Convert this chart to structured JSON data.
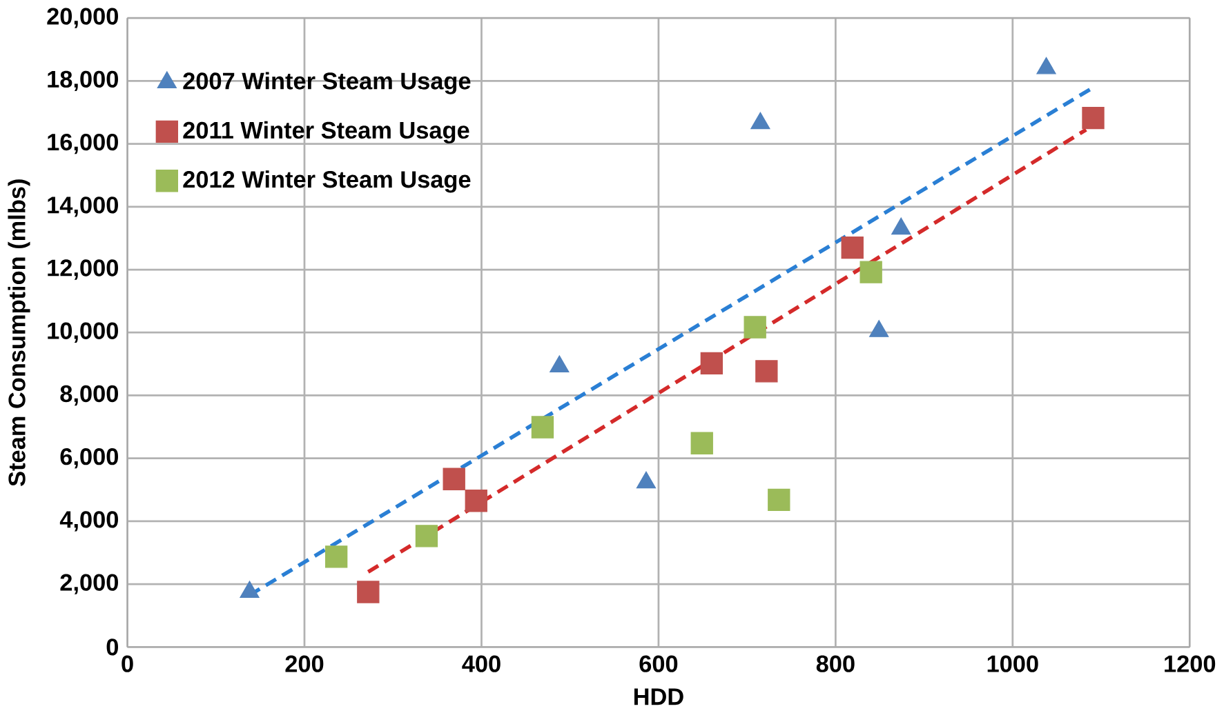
{
  "chart_data": {
    "type": "scatter",
    "xlabel": "HDD",
    "ylabel": "Steam Consumption (mlbs)",
    "xlim": [
      0,
      1200
    ],
    "xticks": [
      0,
      200,
      400,
      600,
      800,
      1000,
      1200
    ],
    "ylim": [
      0,
      20000
    ],
    "yticks": [
      {
        "value": 0,
        "label": "0"
      },
      {
        "value": 2000,
        "label": "2,000"
      },
      {
        "value": 4000,
        "label": "4,000"
      },
      {
        "value": 6000,
        "label": "6,000"
      },
      {
        "value": 8000,
        "label": "8,000"
      },
      {
        "value": 10000,
        "label": "10,000"
      },
      {
        "value": 12000,
        "label": "12,000"
      },
      {
        "value": 14000,
        "label": "14,000"
      },
      {
        "value": 16000,
        "label": "16,000"
      },
      {
        "value": 18000,
        "label": "18,000"
      },
      {
        "value": 20000,
        "label": "20,000"
      }
    ],
    "grid": true,
    "legend": "top left",
    "series": [
      {
        "name": "2007 Winter Steam Usage",
        "color": "#4f81bd",
        "marker": "triangle",
        "x": [
          138,
          488,
          586,
          715,
          849,
          874,
          1038
        ],
        "values": [
          1750,
          8920,
          5230,
          16650,
          10040,
          13300,
          18400
        ]
      },
      {
        "name": "2011 Winter Steam Usage",
        "color": "#c0504d",
        "marker": "square",
        "x": [
          272,
          369,
          394,
          660,
          722,
          819,
          1091
        ],
        "values": [
          1750,
          5340,
          4650,
          9020,
          8770,
          12700,
          16820
        ]
      },
      {
        "name": "2012 Winter Steam Usage",
        "color": "#9bbb59",
        "marker": "square",
        "x": [
          236,
          338,
          469,
          649,
          709,
          736,
          840
        ],
        "values": [
          2870,
          3530,
          6990,
          6480,
          10170,
          4680,
          11920
        ]
      },
      {
        "type": "line",
        "color": "#2a7fd4",
        "line_style": "dashed",
        "marker": "none",
        "x": [
          138,
          1088
        ],
        "values": [
          1650,
          17740
        ]
      },
      {
        "type": "line",
        "color": "#d42a2a",
        "line_style": "dashed",
        "marker": "none",
        "x": [
          272,
          1083
        ],
        "values": [
          2390,
          16450
        ]
      }
    ]
  }
}
